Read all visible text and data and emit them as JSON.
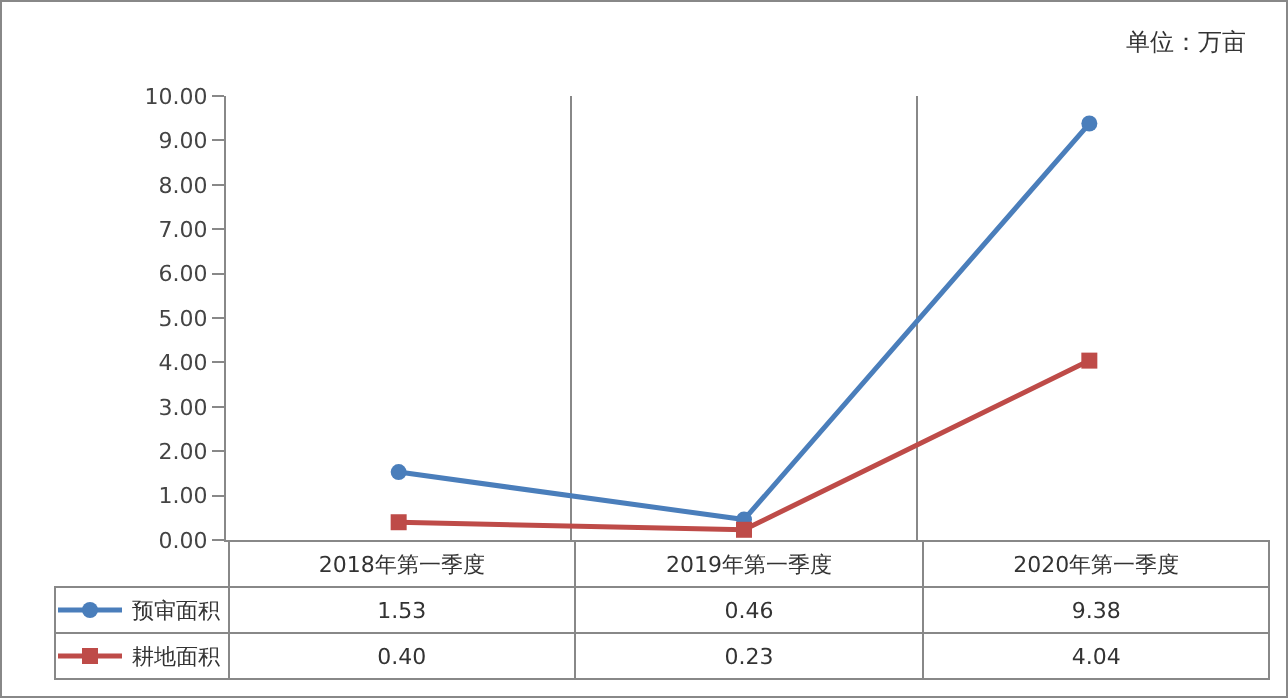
{
  "chart_data": {
    "type": "line",
    "annotations": [
      "单位：万亩"
    ],
    "categories": [
      "2018年第一季度",
      "2019年第一季度",
      "2020年第一季度"
    ],
    "series": [
      {
        "name": "预审面积",
        "color": "#4a7ebb",
        "values": [
          1.53,
          0.46,
          9.38
        ],
        "value_labels": [
          "1.53",
          "0.46",
          "9.38"
        ],
        "marker": "circle"
      },
      {
        "name": "耕地面积",
        "color": "#be4b48",
        "values": [
          0.4,
          0.23,
          4.04
        ],
        "value_labels": [
          "0.40",
          "0.23",
          "4.04"
        ],
        "marker": "square"
      }
    ],
    "ylim": [
      0,
      10
    ],
    "yticks": [
      {
        "value": 0,
        "label": "0.00"
      },
      {
        "value": 1,
        "label": "1.00"
      },
      {
        "value": 2,
        "label": "2.00"
      },
      {
        "value": 3,
        "label": "3.00"
      },
      {
        "value": 4,
        "label": "4.00"
      },
      {
        "value": 5,
        "label": "5.00"
      },
      {
        "value": 6,
        "label": "6.00"
      },
      {
        "value": 7,
        "label": "7.00"
      },
      {
        "value": 8,
        "label": "8.00"
      },
      {
        "value": 9,
        "label": "9.00"
      },
      {
        "value": 10,
        "label": "10.00"
      }
    ],
    "grid": "x",
    "legend": "bottom left",
    "line_style": "solid"
  }
}
